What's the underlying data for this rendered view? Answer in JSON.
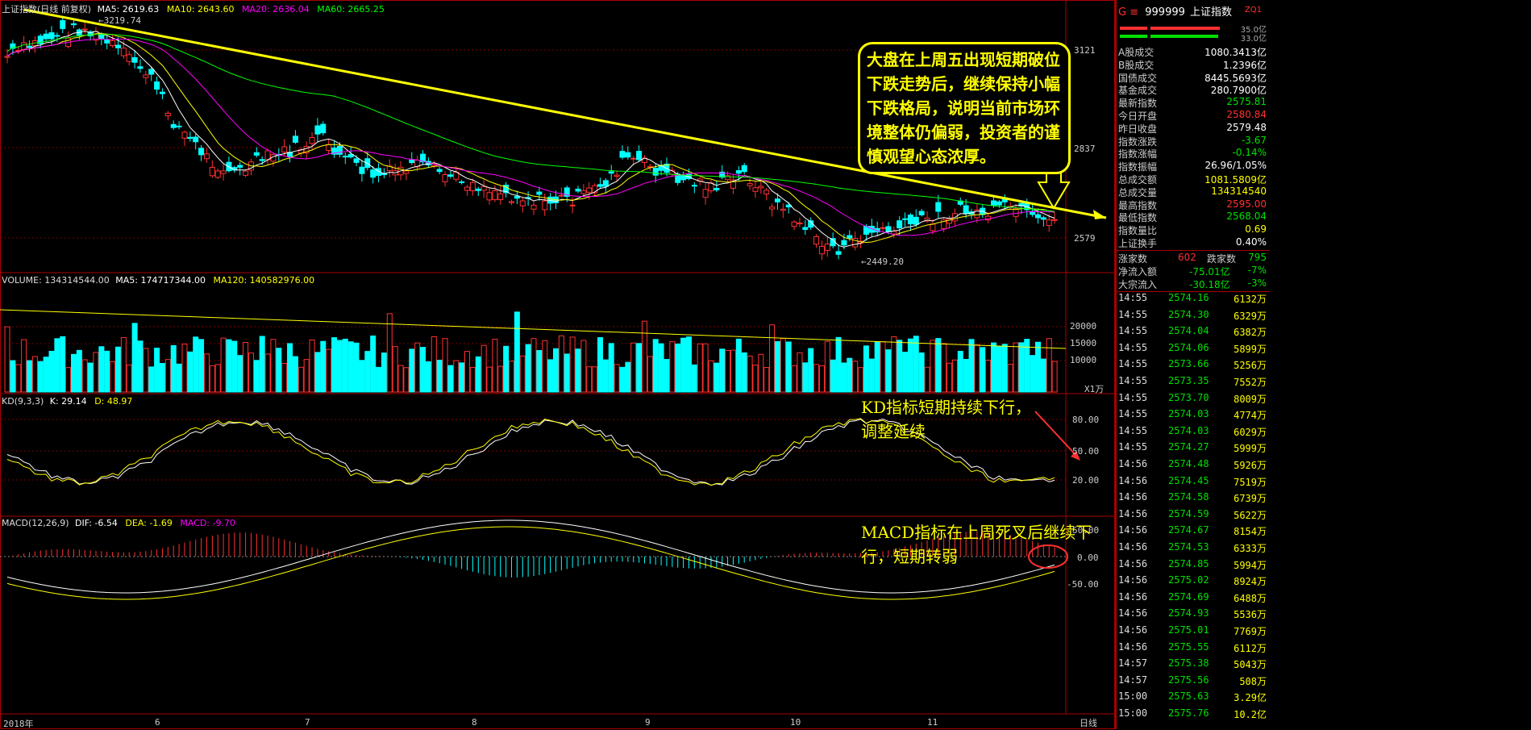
{
  "header": {
    "main": {
      "name": "上证指数(日线 前复权)",
      "ma5": "MA5: 2619.63",
      "ma10": "MA10: 2643.60",
      "ma20": "MA20: 2636.04",
      "ma60": "MA60: 2665.25"
    },
    "volume": {
      "name": "VOLUME: 134314544.00",
      "ma5": "MA5: 174717344.00",
      "ma120": "MA120: 140582976.00"
    },
    "kd": {
      "name": "KD(9,3,3)",
      "k": "K: 29.14",
      "d": "D: 48.97"
    },
    "macd": {
      "name": "MACD(12,26,9)",
      "dif": "DIF: -6.54",
      "dea": "DEA: -1.69",
      "macd": "MACD: -9.70"
    }
  },
  "price_axis": [
    "3121",
    "2837",
    "2579"
  ],
  "volume_axis": [
    "20000",
    "15000",
    "10000"
  ],
  "volume_unit": "X1万",
  "kd_axis": [
    "80.00",
    "50.00",
    "20.00"
  ],
  "macd_axis": [
    "50.00",
    "0.00",
    "-50.00"
  ],
  "month_axis": [
    "2018年",
    "6",
    "7",
    "8",
    "9",
    "10",
    "11"
  ],
  "extremes": {
    "high": "3219.74",
    "low": "2449.20"
  },
  "callout": {
    "lines": [
      "大盘在上周五出现短期破位",
      "下跌走势后，继续保持小幅",
      "下跌格局，说明当前市场环",
      "境整体仍偏弱，投资者的谨",
      "慎观望心态浓厚。"
    ]
  },
  "kd_note": [
    "KD指标短期持续下行，",
    "调整延续"
  ],
  "macd_note": [
    "MACD指标在上周死叉后继续下",
    "行，短期转弱"
  ],
  "panel": {
    "code_prefix": "G ≡",
    "code": "999999",
    "name": "上证指数",
    "tag": "ZQ1",
    "bar_values": [
      "35.0亿",
      "33.0亿"
    ],
    "stats": [
      {
        "k": "A股成交",
        "v": "1080.3413亿",
        "c": "white"
      },
      {
        "k": "B股成交",
        "v": "1.2396亿",
        "c": "white"
      },
      {
        "k": "国债成交",
        "v": "8445.5693亿",
        "c": "white"
      },
      {
        "k": "基金成交",
        "v": "280.7900亿",
        "c": "white"
      },
      {
        "k": "最新指数",
        "v": "2575.81",
        "c": "green"
      },
      {
        "k": "今日开盘",
        "v": "2580.84",
        "c": "red"
      },
      {
        "k": "昨日收盘",
        "v": "2579.48",
        "c": "white"
      },
      {
        "k": "指数涨跌",
        "v": "-3.67",
        "c": "green"
      },
      {
        "k": "指数涨幅",
        "v": "-0.14%",
        "c": "green"
      },
      {
        "k": "指数振幅",
        "v": "26.96/1.05%",
        "c": "white"
      },
      {
        "k": "总成交额",
        "v": "1081.5809亿",
        "c": "yellow"
      },
      {
        "k": "总成交量",
        "v": "134314540",
        "c": "yellow"
      },
      {
        "k": "最高指数",
        "v": "2595.00",
        "c": "red"
      },
      {
        "k": "最低指数",
        "v": "2568.04",
        "c": "green"
      },
      {
        "k": "指数量比",
        "v": "0.69",
        "c": "yellow"
      },
      {
        "k": "上证换手",
        "v": "0.40%",
        "c": "white"
      }
    ],
    "advance": {
      "k1": "涨家数",
      "v1": "602",
      "k2": "跌家数",
      "v2": "795"
    },
    "flows": [
      {
        "k": "净流入额",
        "v": "-75.01亿",
        "pct": "-7%"
      },
      {
        "k": "大宗流入",
        "v": "-30.18亿",
        "pct": "-3%"
      }
    ],
    "ticks": [
      [
        "14:55",
        "2574.16",
        "6132万"
      ],
      [
        "14:55",
        "2574.30",
        "6329万"
      ],
      [
        "14:55",
        "2574.04",
        "6382万"
      ],
      [
        "14:55",
        "2574.06",
        "5899万"
      ],
      [
        "14:55",
        "2573.66",
        "5256万"
      ],
      [
        "14:55",
        "2573.35",
        "7552万"
      ],
      [
        "14:55",
        "2573.70",
        "8009万"
      ],
      [
        "14:55",
        "2574.03",
        "4774万"
      ],
      [
        "14:55",
        "2574.03",
        "6029万"
      ],
      [
        "14:55",
        "2574.27",
        "5999万"
      ],
      [
        "14:56",
        "2574.48",
        "5926万"
      ],
      [
        "14:56",
        "2574.45",
        "7519万"
      ],
      [
        "14:56",
        "2574.58",
        "6739万"
      ],
      [
        "14:56",
        "2574.59",
        "5622万"
      ],
      [
        "14:56",
        "2574.67",
        "8154万"
      ],
      [
        "14:56",
        "2574.53",
        "6333万"
      ],
      [
        "14:56",
        "2574.85",
        "5994万"
      ],
      [
        "14:56",
        "2575.02",
        "8924万"
      ],
      [
        "14:56",
        "2574.69",
        "6488万"
      ],
      [
        "14:56",
        "2574.93",
        "5536万"
      ],
      [
        "14:56",
        "2575.01",
        "7769万"
      ],
      [
        "14:56",
        "2575.55",
        "6112万"
      ],
      [
        "14:57",
        "2575.38",
        "5043万"
      ],
      [
        "14:57",
        "2575.56",
        "508万"
      ],
      [
        "15:00",
        "2575.63",
        "3.29亿"
      ],
      [
        "15:00",
        "2575.76",
        "10.2亿"
      ]
    ],
    "footer": "日线"
  }
}
